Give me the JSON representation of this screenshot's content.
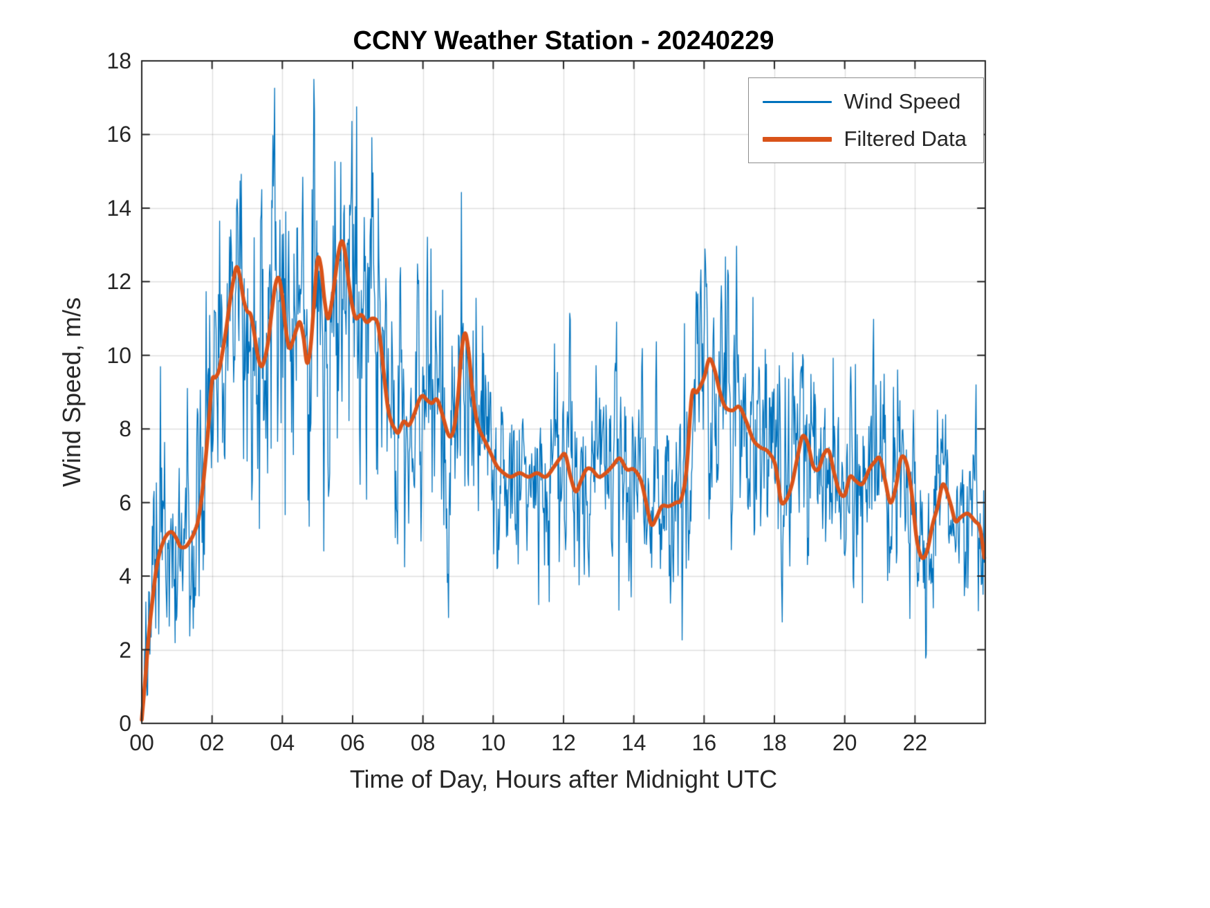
{
  "chart_data": {
    "type": "line",
    "title": "CCNY Weather Station - 20240229",
    "xlabel": "Time of Day, Hours after Midnight UTC",
    "ylabel": "Wind Speed, m/s",
    "xlim": [
      0,
      24
    ],
    "ylim": [
      0,
      18
    ],
    "xticks": [
      0,
      2,
      4,
      6,
      8,
      10,
      12,
      14,
      16,
      18,
      20,
      22
    ],
    "xtick_labels": [
      "00",
      "02",
      "04",
      "06",
      "08",
      "10",
      "12",
      "14",
      "16",
      "18",
      "20",
      "22"
    ],
    "yticks": [
      0,
      2,
      4,
      6,
      8,
      10,
      12,
      14,
      16,
      18
    ],
    "ytick_labels": [
      "0",
      "2",
      "4",
      "6",
      "8",
      "10",
      "12",
      "14",
      "16",
      "18"
    ],
    "grid": true,
    "legend_position": "top-right",
    "series": [
      {
        "name": "Wind Speed",
        "color": "#0072BD",
        "line_width": 1.3,
        "style": "raw-noisy",
        "sample_count": 1440,
        "x_end": 23.97,
        "noise_seed": 20240229,
        "noise_ar_coeff": 0.45,
        "noise_envelope": [
          [
            0,
            0.5
          ],
          [
            0.3,
            1.6
          ],
          [
            0.6,
            1.7
          ],
          [
            1.0,
            1.4
          ],
          [
            1.5,
            1.5
          ],
          [
            2.0,
            1.9
          ],
          [
            2.5,
            2.1
          ],
          [
            3.0,
            2.2
          ],
          [
            3.5,
            2.2
          ],
          [
            4.0,
            2.3
          ],
          [
            4.5,
            2.2
          ],
          [
            5.0,
            2.2
          ],
          [
            5.5,
            2.1
          ],
          [
            6.0,
            2.1
          ],
          [
            6.5,
            2.0
          ],
          [
            7.0,
            1.8
          ],
          [
            7.5,
            1.6
          ],
          [
            8.0,
            1.6
          ],
          [
            8.5,
            1.6
          ],
          [
            9.0,
            1.7
          ],
          [
            9.5,
            1.6
          ],
          [
            10.0,
            1.5
          ],
          [
            10.5,
            1.5
          ],
          [
            11.0,
            1.4
          ],
          [
            11.5,
            1.5
          ],
          [
            12.0,
            1.5
          ],
          [
            12.5,
            1.4
          ],
          [
            13.0,
            1.4
          ],
          [
            13.5,
            1.6
          ],
          [
            14.0,
            1.5
          ],
          [
            14.5,
            1.3
          ],
          [
            15.0,
            1.3
          ],
          [
            15.5,
            1.6
          ],
          [
            16.0,
            1.7
          ],
          [
            16.5,
            1.6
          ],
          [
            17.0,
            1.5
          ],
          [
            17.5,
            1.5
          ],
          [
            18.0,
            1.5
          ],
          [
            18.5,
            1.5
          ],
          [
            19.0,
            1.5
          ],
          [
            19.5,
            1.4
          ],
          [
            20.0,
            1.4
          ],
          [
            20.5,
            1.4
          ],
          [
            21.0,
            1.4
          ],
          [
            21.5,
            1.4
          ],
          [
            22.0,
            1.3
          ],
          [
            22.5,
            1.3
          ],
          [
            23.0,
            1.2
          ],
          [
            23.5,
            1.2
          ],
          [
            24.0,
            1.1
          ]
        ]
      },
      {
        "name": "Filtered Data",
        "color": "#D95319",
        "line_width": 5.5,
        "style": "smooth",
        "points": [
          [
            0,
            0.1
          ],
          [
            0.1,
            1.2
          ],
          [
            0.2,
            2.4
          ],
          [
            0.3,
            3.3
          ],
          [
            0.4,
            4.1
          ],
          [
            0.5,
            4.6
          ],
          [
            0.6,
            4.9
          ],
          [
            0.7,
            5.1
          ],
          [
            0.85,
            5.2
          ],
          [
            1,
            5
          ],
          [
            1.1,
            4.8
          ],
          [
            1.25,
            4.8
          ],
          [
            1.4,
            5
          ],
          [
            1.5,
            5.2
          ],
          [
            1.6,
            5.5
          ],
          [
            1.7,
            6.1
          ],
          [
            1.8,
            7
          ],
          [
            1.9,
            8.1
          ],
          [
            2,
            9.3
          ],
          [
            2.1,
            9.4
          ],
          [
            2.2,
            9.6
          ],
          [
            2.3,
            10.1
          ],
          [
            2.4,
            10.7
          ],
          [
            2.5,
            11.4
          ],
          [
            2.6,
            12
          ],
          [
            2.7,
            12.4
          ],
          [
            2.8,
            12.1
          ],
          [
            2.9,
            11.5
          ],
          [
            3,
            11.2
          ],
          [
            3.1,
            11.1
          ],
          [
            3.2,
            10.6
          ],
          [
            3.3,
            10
          ],
          [
            3.4,
            9.7
          ],
          [
            3.5,
            9.9
          ],
          [
            3.6,
            10.4
          ],
          [
            3.7,
            11.2
          ],
          [
            3.8,
            11.9
          ],
          [
            3.9,
            12.1
          ],
          [
            4,
            11.6
          ],
          [
            4.1,
            10.7
          ],
          [
            4.2,
            10.2
          ],
          [
            4.3,
            10.4
          ],
          [
            4.4,
            10.7
          ],
          [
            4.5,
            10.9
          ],
          [
            4.6,
            10.5
          ],
          [
            4.7,
            9.8
          ],
          [
            4.8,
            10.2
          ],
          [
            4.9,
            11.4
          ],
          [
            5,
            12.6
          ],
          [
            5.1,
            12.4
          ],
          [
            5.2,
            11.5
          ],
          [
            5.3,
            11
          ],
          [
            5.4,
            11.4
          ],
          [
            5.5,
            12.1
          ],
          [
            5.6,
            12.8
          ],
          [
            5.7,
            13.1
          ],
          [
            5.8,
            12.7
          ],
          [
            5.9,
            11.9
          ],
          [
            6,
            11.3
          ],
          [
            6.1,
            11
          ],
          [
            6.25,
            11.1
          ],
          [
            6.4,
            10.9
          ],
          [
            6.55,
            11
          ],
          [
            6.7,
            10.9
          ],
          [
            6.8,
            10.3
          ],
          [
            6.9,
            9.4
          ],
          [
            7,
            8.6
          ],
          [
            7.1,
            8.2
          ],
          [
            7.2,
            8
          ],
          [
            7.3,
            7.9
          ],
          [
            7.45,
            8.2
          ],
          [
            7.6,
            8.1
          ],
          [
            7.75,
            8.4
          ],
          [
            7.9,
            8.8
          ],
          [
            8,
            8.9
          ],
          [
            8.1,
            8.8
          ],
          [
            8.25,
            8.7
          ],
          [
            8.4,
            8.8
          ],
          [
            8.55,
            8.4
          ],
          [
            8.7,
            7.9
          ],
          [
            8.8,
            7.8
          ],
          [
            8.9,
            8.1
          ],
          [
            9,
            8.9
          ],
          [
            9.1,
            10.1
          ],
          [
            9.2,
            10.6
          ],
          [
            9.3,
            10.1
          ],
          [
            9.4,
            9.1
          ],
          [
            9.5,
            8.4
          ],
          [
            9.6,
            8
          ],
          [
            9.75,
            7.7
          ],
          [
            9.9,
            7.4
          ],
          [
            10.1,
            7
          ],
          [
            10.3,
            6.8
          ],
          [
            10.5,
            6.7
          ],
          [
            10.75,
            6.8
          ],
          [
            11,
            6.7
          ],
          [
            11.25,
            6.8
          ],
          [
            11.5,
            6.7
          ],
          [
            11.75,
            7
          ],
          [
            11.9,
            7.2
          ],
          [
            12.05,
            7.3
          ],
          [
            12.2,
            6.7
          ],
          [
            12.35,
            6.3
          ],
          [
            12.5,
            6.6
          ],
          [
            12.65,
            6.9
          ],
          [
            12.8,
            6.9
          ],
          [
            13,
            6.7
          ],
          [
            13.2,
            6.8
          ],
          [
            13.4,
            7
          ],
          [
            13.6,
            7.2
          ],
          [
            13.8,
            6.9
          ],
          [
            14,
            6.9
          ],
          [
            14.2,
            6.6
          ],
          [
            14.35,
            6
          ],
          [
            14.5,
            5.4
          ],
          [
            14.65,
            5.6
          ],
          [
            14.8,
            5.9
          ],
          [
            15,
            5.9
          ],
          [
            15.2,
            6
          ],
          [
            15.35,
            6.1
          ],
          [
            15.5,
            6.9
          ],
          [
            15.65,
            8.9
          ],
          [
            15.8,
            9
          ],
          [
            16,
            9.4
          ],
          [
            16.15,
            9.9
          ],
          [
            16.3,
            9.6
          ],
          [
            16.45,
            9
          ],
          [
            16.6,
            8.6
          ],
          [
            16.8,
            8.5
          ],
          [
            17,
            8.6
          ],
          [
            17.2,
            8.2
          ],
          [
            17.4,
            7.7
          ],
          [
            17.6,
            7.5
          ],
          [
            17.8,
            7.4
          ],
          [
            18,
            7.1
          ],
          [
            18.1,
            6.6
          ],
          [
            18.2,
            6
          ],
          [
            18.35,
            6.1
          ],
          [
            18.5,
            6.5
          ],
          [
            18.65,
            7.2
          ],
          [
            18.8,
            7.8
          ],
          [
            18.95,
            7.6
          ],
          [
            19.1,
            7
          ],
          [
            19.25,
            6.9
          ],
          [
            19.4,
            7.3
          ],
          [
            19.55,
            7.4
          ],
          [
            19.7,
            6.8
          ],
          [
            19.85,
            6.3
          ],
          [
            20,
            6.2
          ],
          [
            20.15,
            6.7
          ],
          [
            20.3,
            6.6
          ],
          [
            20.5,
            6.5
          ],
          [
            20.7,
            6.9
          ],
          [
            20.85,
            7.1
          ],
          [
            21,
            7.2
          ],
          [
            21.15,
            6.6
          ],
          [
            21.3,
            6
          ],
          [
            21.45,
            6.4
          ],
          [
            21.6,
            7.2
          ],
          [
            21.75,
            7.1
          ],
          [
            21.9,
            6.3
          ],
          [
            22.05,
            5
          ],
          [
            22.2,
            4.5
          ],
          [
            22.35,
            4.7
          ],
          [
            22.5,
            5.4
          ],
          [
            22.65,
            5.9
          ],
          [
            22.8,
            6.5
          ],
          [
            23,
            6
          ],
          [
            23.15,
            5.5
          ],
          [
            23.3,
            5.6
          ],
          [
            23.5,
            5.7
          ],
          [
            23.7,
            5.5
          ],
          [
            23.85,
            5.3
          ],
          [
            23.97,
            4.5
          ]
        ]
      }
    ],
    "axis_color": "#262626",
    "grid_color": "rgba(38,38,38,0.15)",
    "background": "#ffffff"
  }
}
